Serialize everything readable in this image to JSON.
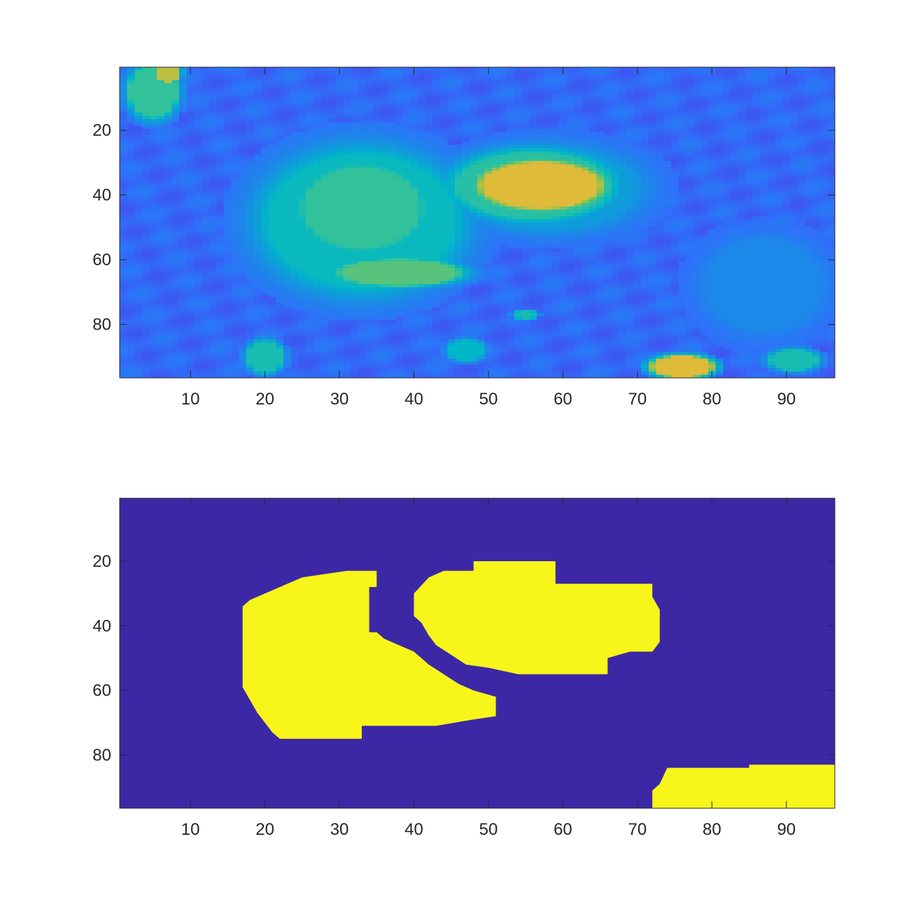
{
  "chart_data": [
    {
      "type": "heatmap",
      "title": "",
      "xlabel": "",
      "ylabel": "",
      "colormap": "parula",
      "grid": false,
      "xlim": [
        0.5,
        96.5
      ],
      "ylim": [
        0.5,
        96.5
      ],
      "y_direction": "reverse",
      "x_ticks": [
        10,
        20,
        30,
        40,
        50,
        60,
        70,
        80,
        90
      ],
      "x_tick_labels": [
        "10",
        "20",
        "30",
        "40",
        "50",
        "60",
        "70",
        "80",
        "90"
      ],
      "y_ticks": [
        20,
        40,
        60,
        80
      ],
      "y_tick_labels": [
        "20",
        "40",
        "60",
        "80"
      ],
      "background_value": 0.22,
      "regions": [
        {
          "name": "left-edge-bright-band",
          "cx": 5,
          "cy": 8,
          "rx": 4,
          "ry": 10,
          "v": 0.6
        },
        {
          "name": "upper-left-bright-streak",
          "cx": 7,
          "cy": 2,
          "rx": 2,
          "ry": 4,
          "v": 0.8
        },
        {
          "name": "right-ventricle",
          "cx": 33,
          "cy": 48,
          "rx": 16,
          "ry": 26,
          "v": 0.52
        },
        {
          "name": "right-ventricle-inner",
          "cx": 33,
          "cy": 44,
          "rx": 10,
          "ry": 16,
          "v": 0.6
        },
        {
          "name": "right-ventricle-lower",
          "cx": 38,
          "cy": 64,
          "rx": 10,
          "ry": 5,
          "v": 0.66
        },
        {
          "name": "left-ventricle-wall",
          "cx": 58,
          "cy": 38,
          "rx": 15,
          "ry": 16,
          "v": 0.4
        },
        {
          "name": "left-ventricle-cavity",
          "cx": 56,
          "cy": 37,
          "rx": 13,
          "ry": 13,
          "v": 0.58
        },
        {
          "name": "left-ventricle-core",
          "cx": 57,
          "cy": 37,
          "rx": 10,
          "ry": 9,
          "v": 0.85
        },
        {
          "name": "lower-right-blob",
          "cx": 76,
          "cy": 93,
          "rx": 5,
          "ry": 4,
          "v": 0.85
        },
        {
          "name": "right-tissue",
          "cx": 87,
          "cy": 68,
          "rx": 10,
          "ry": 18,
          "v": 0.33
        },
        {
          "name": "lower-right-spot",
          "cx": 91,
          "cy": 91,
          "rx": 4,
          "ry": 4,
          "v": 0.55
        },
        {
          "name": "bottom-center-spot",
          "cx": 47,
          "cy": 88,
          "rx": 3,
          "ry": 4,
          "v": 0.5
        },
        {
          "name": "small-spot",
          "cx": 55,
          "cy": 77,
          "rx": 2,
          "ry": 1.5,
          "v": 0.55
        },
        {
          "name": "bottom-left-streak",
          "cx": 20,
          "cy": 90,
          "rx": 3,
          "ry": 6,
          "v": 0.55
        }
      ]
    },
    {
      "type": "heatmap",
      "title": "",
      "xlabel": "",
      "ylabel": "",
      "colormap": "binary-mask",
      "grid": false,
      "xlim": [
        0.5,
        96.5
      ],
      "ylim": [
        0.5,
        96.5
      ],
      "y_direction": "reverse",
      "x_ticks": [
        10,
        20,
        30,
        40,
        50,
        60,
        70,
        80,
        90
      ],
      "x_tick_labels": [
        "10",
        "20",
        "30",
        "40",
        "50",
        "60",
        "70",
        "80",
        "90"
      ],
      "y_ticks": [
        20,
        40,
        60,
        80
      ],
      "y_tick_labels": [
        "20",
        "40",
        "60",
        "80"
      ],
      "value_colors": {
        "0": "#3c28a5",
        "1": "#f8f51a"
      },
      "masks": [
        {
          "name": "right-ventricle-mask",
          "polygon": [
            [
              17,
              34
            ],
            [
              18,
              32
            ],
            [
              20,
              30
            ],
            [
              22,
              28
            ],
            [
              25,
              25
            ],
            [
              28,
              24
            ],
            [
              31,
              23
            ],
            [
              35,
              23
            ],
            [
              35,
              28
            ],
            [
              34,
              28
            ],
            [
              34,
              42
            ],
            [
              35,
              42
            ],
            [
              36,
              44
            ],
            [
              38,
              46
            ],
            [
              40,
              48
            ],
            [
              42,
              52
            ],
            [
              44,
              55
            ],
            [
              46,
              58
            ],
            [
              48,
              60
            ],
            [
              51,
              62
            ],
            [
              51,
              68
            ],
            [
              48,
              69
            ],
            [
              43,
              71
            ],
            [
              33,
              71
            ],
            [
              33,
              75
            ],
            [
              22,
              75
            ],
            [
              21,
              73
            ],
            [
              20,
              70
            ],
            [
              19,
              67
            ],
            [
              18,
              63
            ],
            [
              17,
              59
            ]
          ]
        },
        {
          "name": "left-ventricle-mask",
          "polygon": [
            [
              42,
              25
            ],
            [
              44,
              23
            ],
            [
              48,
              23
            ],
            [
              48,
              20
            ],
            [
              59,
              20
            ],
            [
              59,
              27
            ],
            [
              72,
              27
            ],
            [
              72,
              31
            ],
            [
              73,
              35
            ],
            [
              73,
              45
            ],
            [
              72,
              48
            ],
            [
              69,
              48
            ],
            [
              66,
              50
            ],
            [
              66,
              55
            ],
            [
              54,
              55
            ],
            [
              52,
              54
            ],
            [
              50,
              53
            ],
            [
              47,
              52
            ],
            [
              45,
              49
            ],
            [
              43,
              46
            ],
            [
              42,
              43
            ],
            [
              41,
              39
            ],
            [
              40,
              37
            ],
            [
              40,
              30
            ]
          ]
        },
        {
          "name": "lower-right-mask",
          "polygon": [
            [
              72,
              96.5
            ],
            [
              72,
              91
            ],
            [
              73,
              89
            ],
            [
              74,
              84
            ],
            [
              85,
              84
            ],
            [
              85,
              83
            ],
            [
              96.5,
              83
            ],
            [
              96.5,
              96.5
            ]
          ]
        }
      ]
    }
  ]
}
